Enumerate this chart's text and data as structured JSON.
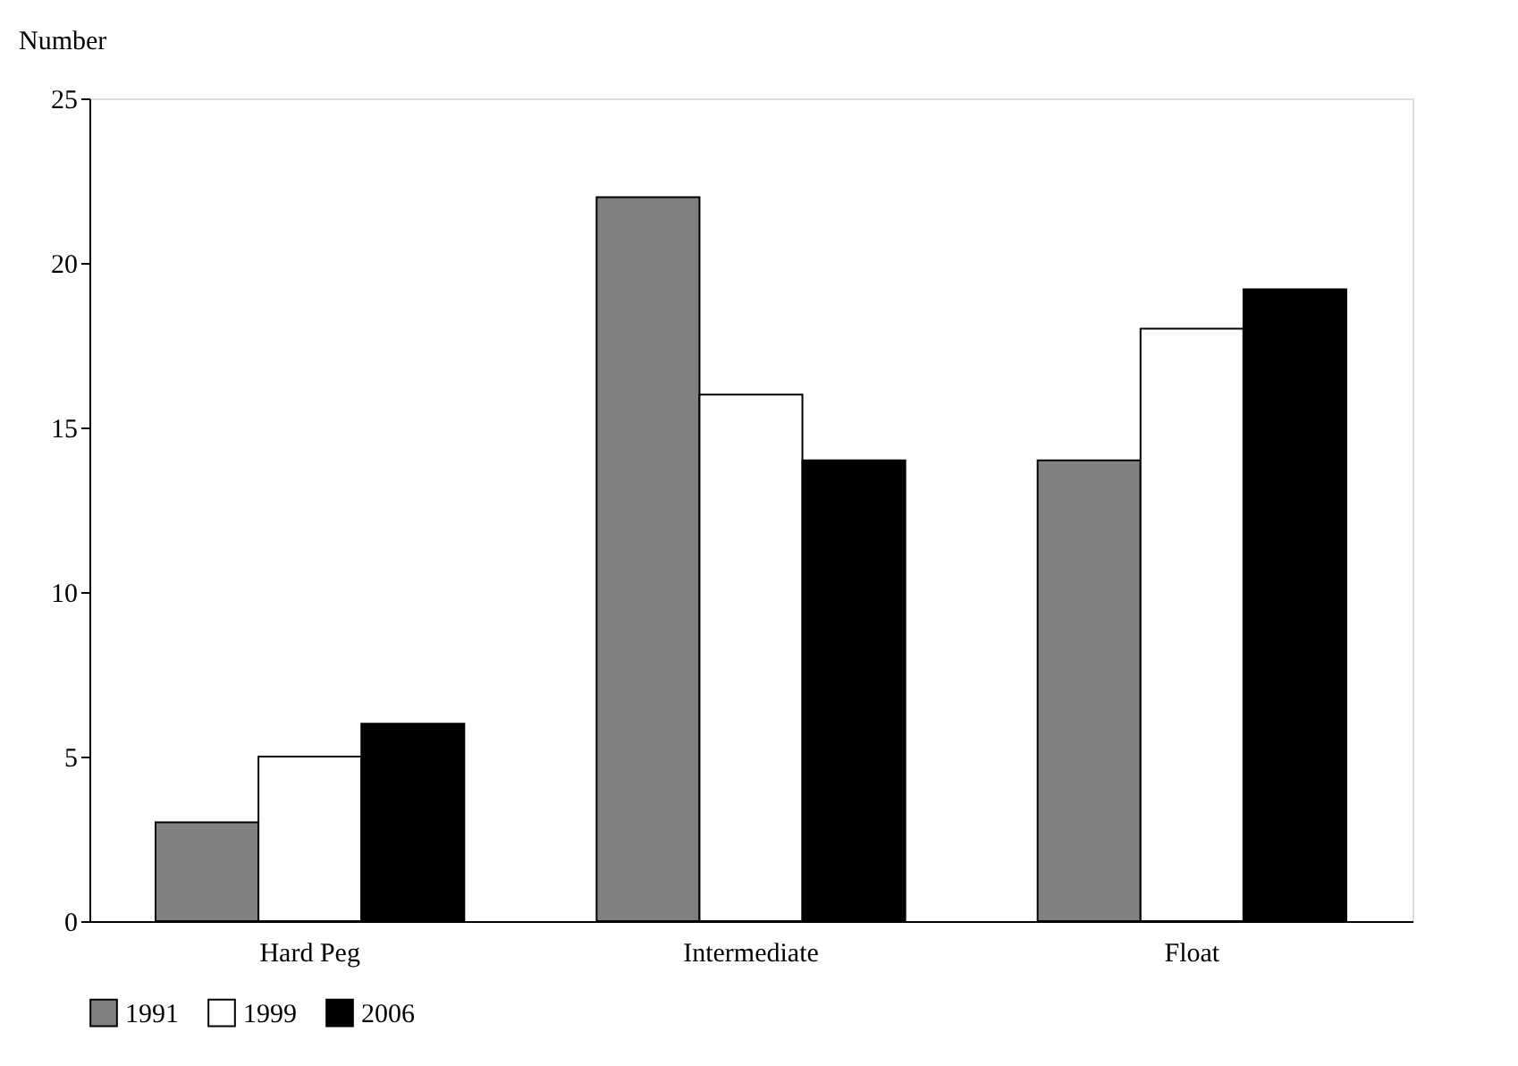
{
  "chart_data": {
    "type": "bar",
    "ylabel": "Number",
    "categories": [
      "Hard Peg",
      "Intermediate",
      "Float"
    ],
    "series": [
      {
        "name": "1991",
        "color": "#808080",
        "values": [
          3,
          22,
          14
        ]
      },
      {
        "name": "1999",
        "color": "#ffffff",
        "values": [
          5,
          16,
          18
        ]
      },
      {
        "name": "2006",
        "color": "#000000",
        "values": [
          6,
          14,
          19.2
        ]
      }
    ],
    "ylim": [
      0,
      25
    ],
    "yticks": [
      0,
      5,
      10,
      15,
      20,
      25
    ],
    "grid": false,
    "legend": "bottom"
  }
}
